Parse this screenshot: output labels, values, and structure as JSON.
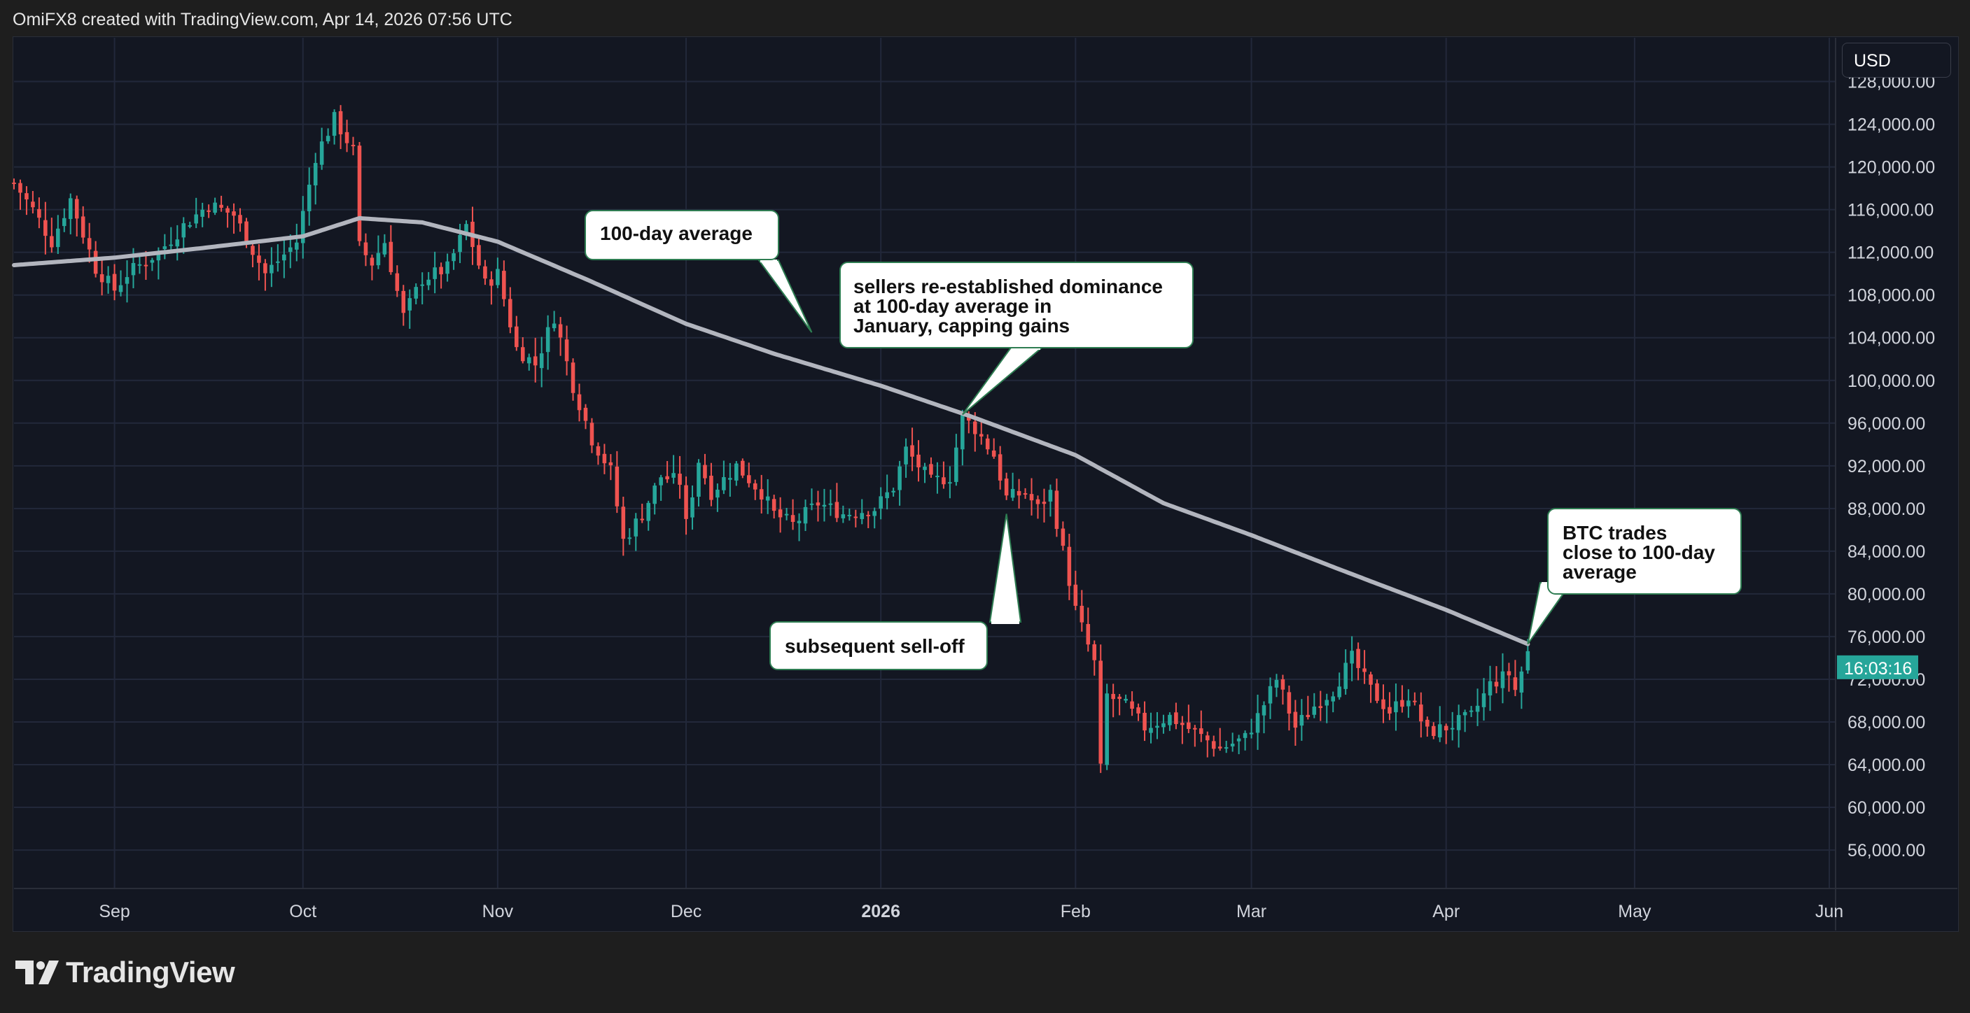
{
  "header": {
    "text": "OmiFX8 created with TradingView.com, Apr 14, 2026 07:56 UTC"
  },
  "currency": "USD",
  "logo_text": "TradingView",
  "colors": {
    "up": "#26a69a",
    "down": "#ef5350",
    "ma": "#b2b5be",
    "background": "#131722",
    "grid": "#22283a",
    "price_tag": "#26a69a"
  },
  "chart_data": {
    "type": "candlestick",
    "series": [
      {
        "name": "100-day average"
      }
    ],
    "x_range": [
      "2025-08-16",
      "2026-06-02"
    ],
    "ylim": [
      52400,
      132100
    ],
    "y_ticks": [
      "56,000.00",
      "60,000.00",
      "64,000.00",
      "68,000.00",
      "72,000.00",
      "76,000.00",
      "80,000.00",
      "84,000.00",
      "88,000.00",
      "92,000.00",
      "96,000.00",
      "100,000.00",
      "104,000.00",
      "108,000.00",
      "112,000.00",
      "116,000.00",
      "120,000.00",
      "124,000.00",
      "128,000.00"
    ],
    "y_tick_values": [
      56000,
      60000,
      64000,
      68000,
      72000,
      76000,
      80000,
      84000,
      88000,
      92000,
      96000,
      100000,
      104000,
      108000,
      112000,
      116000,
      120000,
      124000,
      128000
    ],
    "x_ticks": [
      {
        "label": "Sep",
        "date": "2025-09-01"
      },
      {
        "label": "Oct",
        "date": "2025-10-01"
      },
      {
        "label": "Nov",
        "date": "2025-11-01"
      },
      {
        "label": "Dec",
        "date": "2025-12-01"
      },
      {
        "label": "2026",
        "date": "2026-01-01"
      },
      {
        "label": "Feb",
        "date": "2026-02-01"
      },
      {
        "label": "Mar",
        "date": "2026-03-01"
      },
      {
        "label": "Apr",
        "date": "2026-04-01"
      },
      {
        "label": "May",
        "date": "2026-05-01"
      },
      {
        "label": "Jun",
        "date": "2026-06-01"
      }
    ],
    "price_anchors": [
      [
        "2025-08-16",
        118500
      ],
      [
        "2025-08-19",
        116000
      ],
      [
        "2025-08-22",
        113000
      ],
      [
        "2025-08-25",
        117000
      ],
      [
        "2025-08-29",
        110500
      ],
      [
        "2025-09-01",
        108500
      ],
      [
        "2025-09-03",
        110000
      ],
      [
        "2025-09-08",
        112000
      ],
      [
        "2025-09-12",
        114500
      ],
      [
        "2025-09-16",
        116500
      ],
      [
        "2025-09-20",
        115500
      ],
      [
        "2025-09-25",
        110000
      ],
      [
        "2025-09-30",
        113000
      ],
      [
        "2025-10-03",
        121000
      ],
      [
        "2025-10-06",
        124500
      ],
      [
        "2025-10-09",
        121500
      ],
      [
        "2025-10-10",
        112500
      ],
      [
        "2025-10-12",
        111000
      ],
      [
        "2025-10-14",
        113000
      ],
      [
        "2025-10-17",
        106000
      ],
      [
        "2025-10-20",
        109500
      ],
      [
        "2025-10-24",
        110500
      ],
      [
        "2025-10-27",
        114500
      ],
      [
        "2025-10-30",
        109000
      ],
      [
        "2025-11-01",
        110000
      ],
      [
        "2025-11-04",
        103000
      ],
      [
        "2025-11-07",
        101500
      ],
      [
        "2025-11-10",
        106000
      ],
      [
        "2025-11-13",
        99500
      ],
      [
        "2025-11-16",
        94500
      ],
      [
        "2025-11-19",
        91500
      ],
      [
        "2025-11-21",
        85000
      ],
      [
        "2025-11-24",
        87500
      ],
      [
        "2025-11-27",
        91000
      ],
      [
        "2025-11-30",
        90500
      ],
      [
        "2025-12-01",
        86500
      ],
      [
        "2025-12-03",
        92500
      ],
      [
        "2025-12-05",
        89500
      ],
      [
        "2025-12-09",
        92000
      ],
      [
        "2025-12-13",
        89500
      ],
      [
        "2025-12-15",
        87500
      ],
      [
        "2025-12-18",
        86500
      ],
      [
        "2025-12-22",
        88500
      ],
      [
        "2025-12-26",
        87500
      ],
      [
        "2025-12-31",
        88000
      ],
      [
        "2026-01-03",
        90000
      ],
      [
        "2026-01-05",
        93500
      ],
      [
        "2026-01-09",
        90500
      ],
      [
        "2026-01-12",
        91000
      ],
      [
        "2026-01-14",
        96500
      ],
      [
        "2026-01-16",
        95500
      ],
      [
        "2026-01-19",
        93000
      ],
      [
        "2026-01-21",
        89000
      ],
      [
        "2026-01-24",
        89500
      ],
      [
        "2026-01-26",
        88000
      ],
      [
        "2026-01-28",
        89500
      ],
      [
        "2026-01-30",
        84000
      ],
      [
        "2026-02-01",
        78500
      ],
      [
        "2026-02-04",
        73500
      ],
      [
        "2026-02-05",
        63500
      ],
      [
        "2026-02-06",
        70500
      ],
      [
        "2026-02-09",
        69500
      ],
      [
        "2026-02-12",
        67500
      ],
      [
        "2026-02-16",
        68500
      ],
      [
        "2026-02-20",
        67000
      ],
      [
        "2026-02-24",
        65500
      ],
      [
        "2026-02-28",
        66500
      ],
      [
        "2026-03-02",
        68500
      ],
      [
        "2026-03-05",
        72000
      ],
      [
        "2026-03-08",
        67500
      ],
      [
        "2026-03-11",
        69500
      ],
      [
        "2026-03-14",
        71000
      ],
      [
        "2026-03-17",
        74000
      ],
      [
        "2026-03-20",
        71000
      ],
      [
        "2026-03-23",
        69000
      ],
      [
        "2026-03-26",
        70500
      ],
      [
        "2026-03-29",
        67000
      ],
      [
        "2026-04-01",
        67500
      ],
      [
        "2026-04-05",
        68500
      ],
      [
        "2026-04-08",
        71500
      ],
      [
        "2026-04-11",
        72500
      ],
      [
        "2026-04-12",
        71000
      ],
      [
        "2026-04-14",
        74500
      ]
    ],
    "moving_average_anchors": [
      [
        "2025-08-16",
        110800
      ],
      [
        "2025-09-01",
        111500
      ],
      [
        "2025-09-15",
        112400
      ],
      [
        "2025-10-01",
        113500
      ],
      [
        "2025-10-10",
        115200
      ],
      [
        "2025-10-20",
        114800
      ],
      [
        "2025-11-01",
        113000
      ],
      [
        "2025-11-15",
        109500
      ],
      [
        "2025-12-01",
        105300
      ],
      [
        "2025-12-15",
        102500
      ],
      [
        "2026-01-01",
        99500
      ],
      [
        "2026-01-15",
        96700
      ],
      [
        "2026-02-01",
        93000
      ],
      [
        "2026-02-15",
        88500
      ],
      [
        "2026-03-01",
        85500
      ],
      [
        "2026-03-15",
        82300
      ],
      [
        "2026-04-01",
        78500
      ],
      [
        "2026-04-14",
        75300
      ]
    ],
    "last_price_time": "16:03:16",
    "annotations": [
      {
        "text": "100-day average",
        "target": [
          "2025-12-21",
          104500
        ]
      },
      {
        "lines": [
          "sellers re-established dominance",
          "at 100-day average in",
          "January, capping gains"
        ],
        "target": [
          "2026-01-14",
          96800
        ]
      },
      {
        "text": "subsequent sell-off",
        "target": [
          "2026-01-21",
          87500
        ]
      },
      {
        "lines": [
          "BTC trades",
          "close to 100-day",
          "average"
        ],
        "target": [
          "2026-04-14",
          75300
        ]
      }
    ]
  }
}
